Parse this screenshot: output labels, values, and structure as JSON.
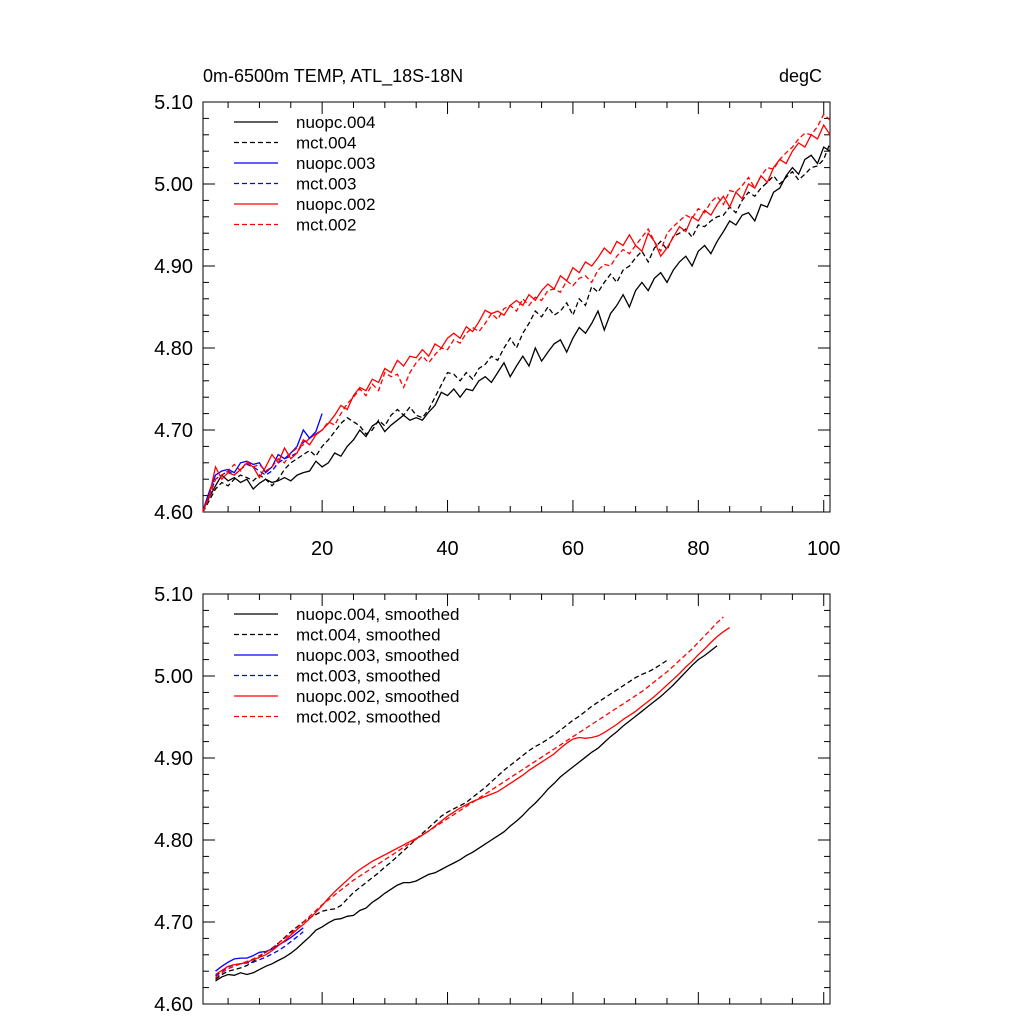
{
  "chart_data": [
    {
      "type": "line",
      "title": "0m-6500m TEMP, ATL_18S-18N",
      "unit": "degC",
      "xlim": [
        1,
        101
      ],
      "ylim": [
        4.6,
        5.1
      ],
      "x_ticks": [
        20,
        40,
        60,
        80,
        100
      ],
      "y_ticks": [
        "4.60",
        "4.70",
        "4.80",
        "4.90",
        "5.00",
        "5.10"
      ],
      "legend_position": "top-left",
      "grid": false,
      "series": [
        {
          "name": "nuopc.004",
          "color": "#000000",
          "dash": "solid",
          "x_start": 1,
          "values": [
            4.602,
            4.618,
            4.632,
            4.645,
            4.638,
            4.642,
            4.636,
            4.64,
            4.628,
            4.635,
            4.64,
            4.636,
            4.638,
            4.642,
            4.638,
            4.645,
            4.648,
            4.65,
            4.662,
            4.655,
            4.66,
            4.672,
            4.668,
            4.68,
            4.688,
            4.7,
            4.692,
            4.705,
            4.71,
            4.698,
            4.706,
            4.712,
            4.718,
            4.712,
            4.715,
            4.712,
            4.722,
            4.73,
            4.746,
            4.742,
            4.75,
            4.74,
            4.75,
            4.748,
            4.76,
            4.765,
            4.758,
            4.77,
            4.782,
            4.765,
            4.778,
            4.79,
            4.778,
            4.8,
            4.784,
            4.795,
            4.805,
            4.81,
            4.795,
            4.812,
            4.825,
            4.818,
            4.83,
            4.845,
            4.822,
            4.842,
            4.852,
            4.865,
            4.85,
            4.87,
            4.88,
            4.87,
            4.885,
            4.892,
            4.88,
            4.895,
            4.905,
            4.912,
            4.9,
            4.918,
            4.925,
            4.915,
            4.93,
            4.942,
            4.955,
            4.95,
            4.962,
            4.965,
            4.955,
            4.975,
            4.972,
            4.99,
            4.995,
            5.01,
            5.02,
            5.012,
            5.03,
            5.035,
            5.025,
            5.045,
            5.04
          ]
        },
        {
          "name": "mct.004",
          "color": "#000000",
          "dash": "dashed",
          "x_start": 1,
          "values": [
            4.6,
            4.614,
            4.628,
            4.636,
            4.632,
            4.64,
            4.645,
            4.642,
            4.638,
            4.645,
            4.64,
            4.632,
            4.64,
            4.652,
            4.66,
            4.665,
            4.67,
            4.675,
            4.668,
            4.68,
            4.688,
            4.698,
            4.708,
            4.715,
            4.71,
            4.705,
            4.695,
            4.7,
            4.712,
            4.705,
            4.718,
            4.725,
            4.718,
            4.728,
            4.718,
            4.715,
            4.725,
            4.74,
            4.755,
            4.77,
            4.768,
            4.76,
            4.77,
            4.762,
            4.775,
            4.78,
            4.79,
            4.785,
            4.8,
            4.812,
            4.8,
            4.818,
            4.83,
            4.845,
            4.838,
            4.85,
            4.84,
            4.845,
            4.855,
            4.84,
            4.86,
            4.852,
            4.875,
            4.868,
            4.88,
            4.89,
            4.88,
            4.895,
            4.9,
            4.91,
            4.918,
            4.905,
            4.922,
            4.93,
            4.92,
            4.936,
            4.94,
            4.945,
            4.935,
            4.95,
            4.948,
            4.955,
            4.96,
            4.962,
            4.972,
            4.965,
            4.98,
            4.99,
            4.985,
            4.995,
            5.002,
            5.01,
            5.0,
            5.008,
            5.015,
            5.005,
            5.012,
            5.02,
            5.022,
            5.03,
            5.05
          ]
        },
        {
          "name": "nuopc.003",
          "color": "#0000ff",
          "dash": "solid",
          "x_start": 1,
          "values": [
            4.602,
            4.625,
            4.645,
            4.65,
            4.652,
            4.648,
            4.66,
            4.662,
            4.658,
            4.66,
            4.648,
            4.655,
            4.67,
            4.665,
            4.672,
            4.68,
            4.7,
            4.69,
            4.698,
            4.72
          ]
        },
        {
          "name": "mct.003",
          "color": "#0000ff",
          "dash": "dashed",
          "x_start": 1,
          "values": [
            4.602,
            4.62,
            4.64,
            4.645,
            4.65,
            4.645,
            4.652,
            4.658,
            4.655,
            4.65,
            4.645,
            4.65,
            4.66,
            4.665,
            4.668,
            4.672,
            4.685,
            4.69,
            4.695,
            4.7
          ]
        },
        {
          "name": "nuopc.002",
          "color": "#ff0000",
          "dash": "solid",
          "x_start": 1,
          "values": [
            4.602,
            4.62,
            4.655,
            4.64,
            4.648,
            4.645,
            4.652,
            4.66,
            4.655,
            4.642,
            4.655,
            4.67,
            4.66,
            4.678,
            4.665,
            4.672,
            4.688,
            4.682,
            4.694,
            4.7,
            4.708,
            4.718,
            4.73,
            4.725,
            4.742,
            4.752,
            4.748,
            4.762,
            4.758,
            4.775,
            4.77,
            4.785,
            4.778,
            4.79,
            4.788,
            4.798,
            4.79,
            4.805,
            4.8,
            4.812,
            4.818,
            4.812,
            4.826,
            4.82,
            4.832,
            4.846,
            4.842,
            4.845,
            4.84,
            4.852,
            4.858,
            4.852,
            4.865,
            4.858,
            4.87,
            4.878,
            4.872,
            4.888,
            4.882,
            4.898,
            4.892,
            4.905,
            4.9,
            4.91,
            4.922,
            4.915,
            4.93,
            4.925,
            4.938,
            4.925,
            4.918,
            4.94,
            4.93,
            4.912,
            4.922,
            4.935,
            4.948,
            4.942,
            4.96,
            4.955,
            4.968,
            4.962,
            4.975,
            4.985,
            4.972,
            4.99,
            4.982,
            5.0,
            4.995,
            5.01,
            5.002,
            5.02,
            5.03,
            5.025,
            5.04,
            5.05,
            5.045,
            5.06,
            5.055,
            5.072,
            5.06
          ]
        },
        {
          "name": "mct.002",
          "color": "#ff0000",
          "dash": "dashed",
          "x_start": 1,
          "values": [
            4.6,
            4.618,
            4.64,
            4.645,
            4.65,
            4.658,
            4.65,
            4.662,
            4.655,
            4.658,
            4.65,
            4.655,
            4.665,
            4.66,
            4.672,
            4.678,
            4.682,
            4.69,
            4.695,
            4.7,
            4.71,
            4.706,
            4.72,
            4.732,
            4.74,
            4.75,
            4.742,
            4.756,
            4.748,
            4.77,
            4.765,
            4.768,
            4.752,
            4.77,
            4.782,
            4.79,
            4.782,
            4.792,
            4.8,
            4.798,
            4.81,
            4.806,
            4.818,
            4.825,
            4.82,
            4.83,
            4.842,
            4.835,
            4.848,
            4.852,
            4.845,
            4.86,
            4.852,
            4.862,
            4.858,
            4.87,
            4.872,
            4.868,
            4.882,
            4.876,
            4.885,
            4.888,
            4.88,
            4.895,
            4.902,
            4.9,
            4.912,
            4.92,
            4.915,
            4.925,
            4.935,
            4.945,
            4.93,
            4.918,
            4.94,
            4.948,
            4.955,
            4.962,
            4.958,
            4.97,
            4.965,
            4.978,
            4.985,
            4.975,
            4.992,
            4.99,
            4.998,
            5.008,
            4.995,
            5.01,
            5.02,
            5.018,
            5.03,
            5.038,
            5.045,
            5.055,
            5.062,
            5.06,
            5.07,
            5.085,
            5.078
          ]
        }
      ]
    },
    {
      "type": "line",
      "xlim": [
        1,
        101
      ],
      "ylim": [
        4.6,
        5.1
      ],
      "y_ticks": [
        "4.60",
        "4.70",
        "4.80",
        "4.90",
        "5.00",
        "5.10"
      ],
      "legend_position": "top-left",
      "grid": false,
      "series": [
        {
          "name": "nuopc.004, smoothed",
          "color": "#000000",
          "dash": "solid",
          "x_start": 3,
          "values": [
            4.628,
            4.633,
            4.636,
            4.635,
            4.638,
            4.636,
            4.638,
            4.642,
            4.646,
            4.649,
            4.653,
            4.657,
            4.662,
            4.668,
            4.675,
            4.682,
            4.69,
            4.694,
            4.699,
            4.703,
            4.704,
            4.707,
            4.708,
            4.714,
            4.717,
            4.724,
            4.729,
            4.735,
            4.74,
            4.745,
            4.748,
            4.748,
            4.75,
            4.754,
            4.758,
            4.76,
            4.764,
            4.768,
            4.772,
            4.776,
            4.781,
            4.785,
            4.79,
            4.795,
            4.8,
            4.805,
            4.81,
            4.817,
            4.823,
            4.83,
            4.838,
            4.845,
            4.853,
            4.862,
            4.869,
            4.877,
            4.883,
            4.889,
            4.895,
            4.901,
            4.907,
            4.912,
            4.919,
            4.926,
            4.932,
            4.939,
            4.945,
            4.951,
            4.957,
            4.963,
            4.969,
            4.975,
            4.982,
            4.989,
            4.997,
            5.005,
            5.013,
            5.02,
            5.025,
            5.031,
            5.037
          ]
        },
        {
          "name": "mct.004, smoothed",
          "color": "#000000",
          "dash": "dashed",
          "x_start": 3,
          "values": [
            4.63,
            4.636,
            4.64,
            4.642,
            4.644,
            4.647,
            4.652,
            4.657,
            4.663,
            4.668,
            4.674,
            4.681,
            4.688,
            4.694,
            4.7,
            4.705,
            4.709,
            4.713,
            4.715,
            4.716,
            4.72,
            4.728,
            4.736,
            4.742,
            4.748,
            4.754,
            4.76,
            4.767,
            4.773,
            4.78,
            4.787,
            4.794,
            4.801,
            4.808,
            4.815,
            4.822,
            4.829,
            4.834,
            4.838,
            4.842,
            4.846,
            4.852,
            4.858,
            4.864,
            4.871,
            4.878,
            4.885,
            4.891,
            4.897,
            4.903,
            4.909,
            4.914,
            4.918,
            4.923,
            4.928,
            4.934,
            4.94,
            4.946,
            4.951,
            4.957,
            4.963,
            4.968,
            4.973,
            4.978,
            4.983,
            4.988,
            4.993,
            4.998,
            5.002,
            5.005,
            5.009,
            5.014,
            5.019
          ]
        },
        {
          "name": "nuopc.003, smoothed",
          "color": "#0000ff",
          "dash": "solid",
          "x_start": 3,
          "values": [
            4.64,
            4.646,
            4.651,
            4.655,
            4.656,
            4.656,
            4.659,
            4.663,
            4.664,
            4.667,
            4.672,
            4.676,
            4.681,
            4.687,
            4.693
          ]
        },
        {
          "name": "mct.003, smoothed",
          "color": "#0000ff",
          "dash": "dashed",
          "x_start": 3,
          "values": [
            4.634,
            4.64,
            4.645,
            4.648,
            4.649,
            4.65,
            4.651,
            4.654,
            4.657,
            4.661,
            4.665,
            4.67,
            4.676,
            4.682,
            4.688
          ]
        },
        {
          "name": "nuopc.002, smoothed",
          "color": "#ff0000",
          "dash": "solid",
          "x_start": 3,
          "values": [
            4.636,
            4.641,
            4.646,
            4.648,
            4.649,
            4.651,
            4.654,
            4.657,
            4.66,
            4.665,
            4.671,
            4.677,
            4.684,
            4.691,
            4.697,
            4.704,
            4.712,
            4.72,
            4.729,
            4.737,
            4.744,
            4.751,
            4.758,
            4.764,
            4.769,
            4.774,
            4.778,
            4.782,
            4.786,
            4.79,
            4.794,
            4.798,
            4.802,
            4.806,
            4.811,
            4.817,
            4.823,
            4.829,
            4.834,
            4.839,
            4.843,
            4.847,
            4.85,
            4.853,
            4.856,
            4.859,
            4.864,
            4.869,
            4.874,
            4.879,
            4.885,
            4.89,
            4.895,
            4.9,
            4.905,
            4.912,
            4.918,
            4.923,
            4.925,
            4.924,
            4.925,
            4.927,
            4.931,
            4.936,
            4.941,
            4.947,
            4.952,
            4.957,
            4.963,
            4.969,
            4.975,
            4.982,
            4.989,
            4.996,
            5.003,
            5.011,
            5.018,
            5.026,
            5.033,
            5.041,
            5.048,
            5.054,
            5.059
          ]
        },
        {
          "name": "mct.002, smoothed",
          "color": "#ff0000",
          "dash": "dashed",
          "x_start": 3,
          "values": [
            4.632,
            4.638,
            4.643,
            4.646,
            4.649,
            4.652,
            4.655,
            4.659,
            4.663,
            4.668,
            4.674,
            4.68,
            4.686,
            4.693,
            4.7,
            4.707,
            4.714,
            4.721,
            4.727,
            4.733,
            4.739,
            4.745,
            4.751,
            4.756,
            4.761,
            4.766,
            4.771,
            4.776,
            4.781,
            4.786,
            4.791,
            4.796,
            4.801,
            4.806,
            4.811,
            4.816,
            4.821,
            4.826,
            4.831,
            4.836,
            4.841,
            4.846,
            4.851,
            4.856,
            4.861,
            4.866,
            4.871,
            4.876,
            4.881,
            4.886,
            4.891,
            4.896,
            4.901,
            4.906,
            4.911,
            4.916,
            4.921,
            4.926,
            4.931,
            4.936,
            4.941,
            4.946,
            4.951,
            4.956,
            4.961,
            4.966,
            4.971,
            4.976,
            4.981,
            4.987,
            4.993,
            4.999,
            5.005,
            5.012,
            5.019,
            5.026,
            5.033,
            5.041,
            5.049,
            5.057,
            5.065,
            5.072
          ]
        }
      ]
    }
  ]
}
